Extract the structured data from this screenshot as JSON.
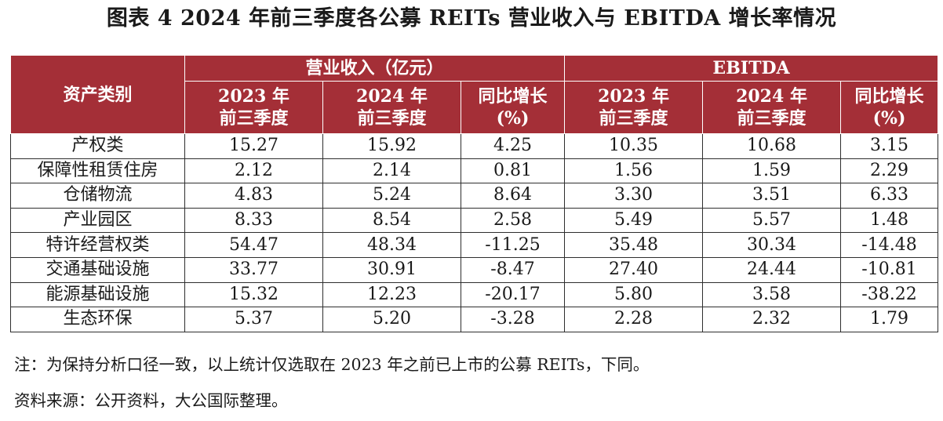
{
  "title": "图表 4  2024 年前三季度各公募 REITs 营业收入与 EBITDA 增长率情况",
  "header": {
    "category": "资产类别",
    "group_revenue": "营业收入（亿元）",
    "group_ebitda": "EBITDA",
    "col_2023_line1": "2023 年",
    "col_2023_line2": "前三季度",
    "col_2024_line1": "2024 年",
    "col_2024_line2": "前三季度",
    "col_growth_line1": "同比增长",
    "col_growth_line2": "(%)"
  },
  "rows": [
    {
      "category": "产权类",
      "rev_2023": "15.27",
      "rev_2024": "15.92",
      "rev_growth": "4.25",
      "ebitda_2023": "10.35",
      "ebitda_2024": "10.68",
      "ebitda_growth": "3.15"
    },
    {
      "category": "保障性租赁住房",
      "rev_2023": "2.12",
      "rev_2024": "2.14",
      "rev_growth": "0.81",
      "ebitda_2023": "1.56",
      "ebitda_2024": "1.59",
      "ebitda_growth": "2.29"
    },
    {
      "category": "仓储物流",
      "rev_2023": "4.83",
      "rev_2024": "5.24",
      "rev_growth": "8.64",
      "ebitda_2023": "3.30",
      "ebitda_2024": "3.51",
      "ebitda_growth": "6.33"
    },
    {
      "category": "产业园区",
      "rev_2023": "8.33",
      "rev_2024": "8.54",
      "rev_growth": "2.58",
      "ebitda_2023": "5.49",
      "ebitda_2024": "5.57",
      "ebitda_growth": "1.48"
    },
    {
      "category": "特许经营权类",
      "rev_2023": "54.47",
      "rev_2024": "48.34",
      "rev_growth": "-11.25",
      "ebitda_2023": "35.48",
      "ebitda_2024": "30.34",
      "ebitda_growth": "-14.48"
    },
    {
      "category": "交通基础设施",
      "rev_2023": "33.77",
      "rev_2024": "30.91",
      "rev_growth": "-8.47",
      "ebitda_2023": "27.40",
      "ebitda_2024": "24.44",
      "ebitda_growth": "-10.81"
    },
    {
      "category": "能源基础设施",
      "rev_2023": "15.32",
      "rev_2024": "12.23",
      "rev_growth": "-20.17",
      "ebitda_2023": "5.80",
      "ebitda_2024": "3.58",
      "ebitda_growth": "-38.22"
    },
    {
      "category": "生态环保",
      "rev_2023": "5.37",
      "rev_2024": "5.20",
      "rev_growth": "-3.28",
      "ebitda_2023": "2.28",
      "ebitda_2024": "2.32",
      "ebitda_growth": "1.79"
    }
  ],
  "notes": {
    "note": "注：为保持分析口径一致，以上统计仅选取在 2023 年之前已上市的公募 REITs，下同。",
    "source": "资料来源：公开资料，大公国际整理。"
  },
  "colors": {
    "header_bg": "#a42f37",
    "header_text": "#ffffff",
    "border": "#2e2e2e"
  }
}
